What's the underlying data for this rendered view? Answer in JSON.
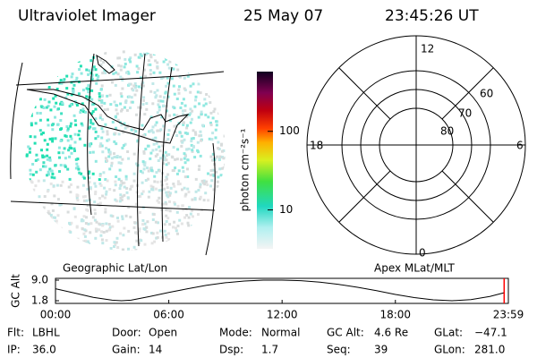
{
  "header": {
    "title": "Ultraviolet Imager",
    "date": "25 May 07",
    "time": "23:45:26 UT"
  },
  "image_panel": {
    "label": "Geographic Lat/Lon"
  },
  "colorbar": {
    "label": "photon cm⁻²s⁻¹",
    "log": true,
    "lim": [
      3.2,
      575
    ],
    "ticks": [
      10,
      100
    ]
  },
  "polar_panel": {
    "label": "Apex MLat/MLT",
    "mlt_labels": [
      "12",
      "18",
      "6",
      "0"
    ],
    "lat_labels": [
      "60",
      "70",
      "80"
    ]
  },
  "altitude": {
    "label": "GC Alt",
    "color": "#000000",
    "marker_color": "#ff0000",
    "ylim": [
      1.8,
      9.0
    ],
    "yticks": [
      {
        "value": 9.0,
        "label": "9.0"
      },
      {
        "value": 1.8,
        "label": "1.8"
      }
    ],
    "xlim": [
      0,
      23.983
    ],
    "xticks": [
      {
        "value": 0,
        "label": "00:00"
      },
      {
        "value": 6,
        "label": "06:00"
      },
      {
        "value": 12,
        "label": "12:00"
      },
      {
        "value": 18,
        "label": "18:00"
      },
      {
        "value": 23.983,
        "label": "23:59"
      }
    ],
    "x": [
      0,
      1,
      2,
      3,
      3.5,
      4,
      5,
      6,
      7,
      8,
      9,
      10,
      11,
      12,
      13,
      14,
      15,
      16,
      17,
      18,
      19,
      20,
      21,
      22,
      23,
      23.75
    ],
    "values": [
      6.0,
      4.5,
      3.0,
      2.0,
      1.8,
      2.0,
      3.3,
      4.7,
      6.0,
      7.2,
      8.1,
      8.7,
      9.0,
      9.0,
      8.8,
      8.3,
      7.5,
      6.5,
      5.3,
      4.0,
      2.9,
      2.1,
      1.8,
      2.2,
      3.3,
      4.6
    ],
    "marker": 23.76
  },
  "footer": {
    "rows": [
      [
        {
          "label": "Flt:",
          "value": "LBHL"
        },
        {
          "label": "Door:",
          "value": "Open"
        },
        {
          "label": "Mode:",
          "value": "Normal"
        },
        {
          "label": "GC Alt:",
          "value": "4.6 Re"
        },
        {
          "label": "GLat:",
          "value": "−47.1"
        }
      ],
      [
        {
          "label": "IP:",
          "value": "36.0"
        },
        {
          "label": "Gain:",
          "value": "14"
        },
        {
          "label": "Dsp:",
          "value": "1.7"
        },
        {
          "label": "Seq:",
          "value": "39"
        },
        {
          "label": "GLon:",
          "value": "281.0"
        }
      ]
    ]
  }
}
